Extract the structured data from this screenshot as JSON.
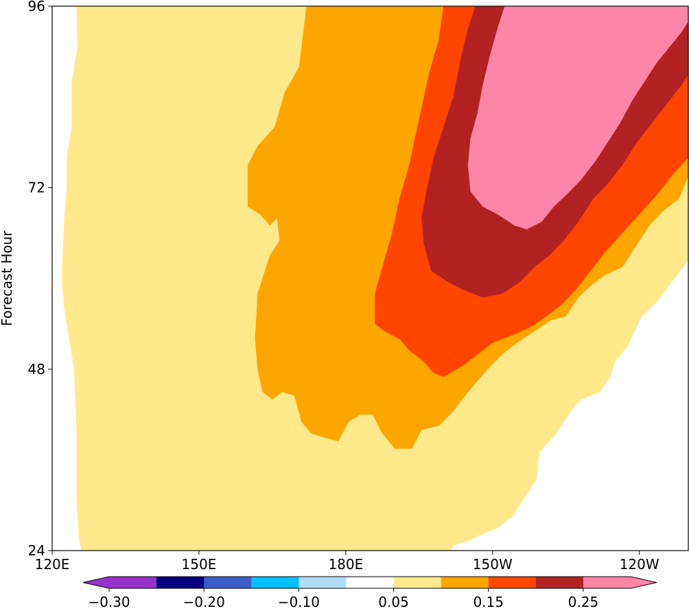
{
  "chart_data": {
    "type": "heatmap",
    "subtype": "filled-contour (Hovmoller)",
    "title": "",
    "xlabel": "",
    "ylabel": "Forecast Hour",
    "x_ticks": [
      "120E",
      "150E",
      "180E",
      "150W",
      "120W"
    ],
    "x_tick_values_lon": [
      120,
      150,
      180,
      210,
      240
    ],
    "x_range_lon": [
      120,
      250
    ],
    "y_ticks": [
      24,
      48,
      72,
      96
    ],
    "ylim": [
      24,
      96
    ],
    "grid": false,
    "contour_levels": [
      -0.3,
      -0.25,
      -0.2,
      -0.15,
      -0.1,
      -0.05,
      0.05,
      0.1,
      0.15,
      0.2,
      0.25,
      0.3
    ],
    "colorbar": {
      "orientation": "horizontal",
      "placement": "bottom",
      "tick_labels": [
        "−0.30",
        "−0.20",
        "−0.10",
        "0.05",
        "0.15",
        "0.25"
      ],
      "colors": [
        "#9932cc",
        "#000080",
        "#3c5ccc",
        "#00bfff",
        "#b0dcf8",
        "#ffffff",
        "#ffe98a",
        "#ffa500",
        "#ff4500",
        "#b22222",
        "#ff85a8"
      ],
      "extend": "both"
    },
    "regions": [
      {
        "level": "0.05–0.10",
        "color": "#ffe98a",
        "outline": [
          [
            125.0,
            96.0
          ],
          [
            125.2,
            90.5
          ],
          [
            124.0,
            86.0
          ],
          [
            124.0,
            80.0
          ],
          [
            123.0,
            76.0
          ],
          [
            123.0,
            72.0
          ],
          [
            122.5,
            68.0
          ],
          [
            122.0,
            60.0
          ],
          [
            122.5,
            56.0
          ],
          [
            123.5,
            52.0
          ],
          [
            124.5,
            48.0
          ],
          [
            125.0,
            40.0
          ],
          [
            125.0,
            31.0
          ],
          [
            125.5,
            25.5
          ],
          [
            126.0,
            24.0
          ],
          [
            201.5,
            24.0
          ],
          [
            202.0,
            24.7
          ],
          [
            205.0,
            25.3
          ],
          [
            209.0,
            26.5
          ],
          [
            211.0,
            27.0
          ],
          [
            214.0,
            28.5
          ],
          [
            216.0,
            30.5
          ],
          [
            218.0,
            32.5
          ],
          [
            219.0,
            33.5
          ],
          [
            219.5,
            37.0
          ],
          [
            223.0,
            39.5
          ],
          [
            225.5,
            42.0
          ],
          [
            228.0,
            44.0
          ],
          [
            232.0,
            45.0
          ],
          [
            234.0,
            47.0
          ],
          [
            235.0,
            49.0
          ],
          [
            237.5,
            51.0
          ],
          [
            239.0,
            53.0
          ],
          [
            240.5,
            55.0
          ],
          [
            243.0,
            56.5
          ],
          [
            246.0,
            59.0
          ],
          [
            249.5,
            62.0
          ],
          [
            250.0,
            62.5
          ],
          [
            250.0,
            96.0
          ]
        ]
      },
      {
        "level": "0.10–0.15",
        "color": "#ffa500",
        "outline": [
          [
            172.0,
            96.0
          ],
          [
            170.5,
            88.0
          ],
          [
            167.5,
            84.5
          ],
          [
            165.5,
            80.0
          ],
          [
            162.0,
            77.5
          ],
          [
            160.0,
            75.0
          ],
          [
            160.0,
            69.5
          ],
          [
            162.5,
            68.5
          ],
          [
            164.5,
            67.0
          ],
          [
            166.0,
            68.0
          ],
          [
            166.5,
            65.0
          ],
          [
            164.5,
            63.0
          ],
          [
            162.0,
            58.0
          ],
          [
            161.5,
            52.0
          ],
          [
            162.0,
            48.0
          ],
          [
            163.0,
            45.0
          ],
          [
            165.0,
            44.0
          ],
          [
            167.0,
            45.0
          ],
          [
            169.5,
            44.5
          ],
          [
            171.0,
            41.0
          ],
          [
            173.0,
            39.5
          ],
          [
            175.5,
            39.0
          ],
          [
            178.5,
            38.5
          ],
          [
            180.5,
            41.0
          ],
          [
            183.0,
            42.0
          ],
          [
            185.5,
            42.0
          ],
          [
            187.5,
            39.5
          ],
          [
            190.0,
            37.5
          ],
          [
            193.5,
            37.5
          ],
          [
            195.5,
            40.0
          ],
          [
            199.0,
            40.5
          ],
          [
            202.0,
            42.5
          ],
          [
            205.0,
            45.0
          ],
          [
            209.0,
            48.0
          ],
          [
            212.0,
            50.0
          ],
          [
            215.0,
            51.5
          ],
          [
            218.5,
            53.0
          ],
          [
            222.0,
            54.5
          ],
          [
            225.0,
            55.0
          ],
          [
            227.5,
            57.5
          ],
          [
            230.0,
            59.0
          ],
          [
            233.0,
            60.5
          ],
          [
            236.5,
            61.5
          ],
          [
            239.0,
            64.0
          ],
          [
            242.0,
            67.0
          ],
          [
            245.0,
            69.0
          ],
          [
            248.0,
            70.5
          ],
          [
            250.0,
            73.5
          ],
          [
            250.0,
            96.0
          ]
        ]
      },
      {
        "level": "0.15–0.20",
        "color": "#ff4500",
        "outline": [
          [
            200.0,
            96.0
          ],
          [
            199.0,
            91.5
          ],
          [
            197.0,
            87.0
          ],
          [
            195.0,
            81.0
          ],
          [
            193.0,
            75.0
          ],
          [
            191.0,
            70.5
          ],
          [
            189.5,
            66.0
          ],
          [
            187.5,
            61.5
          ],
          [
            186.0,
            58.0
          ],
          [
            186.0,
            54.0
          ],
          [
            188.0,
            53.0
          ],
          [
            191.0,
            52.0
          ],
          [
            193.0,
            50.5
          ],
          [
            196.0,
            49.0
          ],
          [
            198.0,
            47.5
          ],
          [
            200.0,
            47.0
          ],
          [
            204.0,
            48.5
          ],
          [
            207.0,
            50.0
          ],
          [
            210.0,
            51.5
          ],
          [
            214.0,
            52.5
          ],
          [
            217.5,
            53.5
          ],
          [
            221.0,
            55.0
          ],
          [
            224.0,
            56.5
          ],
          [
            227.0,
            58.5
          ],
          [
            230.0,
            61.0
          ],
          [
            233.0,
            63.5
          ],
          [
            236.5,
            66.0
          ],
          [
            240.0,
            68.5
          ],
          [
            243.5,
            71.0
          ],
          [
            246.5,
            73.5
          ],
          [
            250.0,
            76.0
          ],
          [
            250.0,
            96.0
          ]
        ]
      },
      {
        "level": "0.20–0.25",
        "color": "#b22222",
        "outline": [
          [
            206.5,
            96.0
          ],
          [
            205.0,
            93.0
          ],
          [
            203.5,
            89.0
          ],
          [
            202.0,
            84.0
          ],
          [
            200.0,
            80.0
          ],
          [
            198.0,
            76.0
          ],
          [
            196.5,
            71.5
          ],
          [
            195.5,
            68.0
          ],
          [
            196.0,
            64.5
          ],
          [
            197.5,
            61.0
          ],
          [
            201.0,
            59.5
          ],
          [
            204.0,
            58.5
          ],
          [
            208.0,
            57.5
          ],
          [
            212.0,
            58.0
          ],
          [
            215.5,
            59.5
          ],
          [
            218.5,
            61.5
          ],
          [
            221.5,
            63.0
          ],
          [
            224.5,
            65.0
          ],
          [
            227.5,
            67.5
          ],
          [
            230.5,
            70.5
          ],
          [
            233.5,
            72.5
          ],
          [
            236.5,
            75.0
          ],
          [
            239.5,
            78.0
          ],
          [
            242.5,
            80.5
          ],
          [
            245.5,
            83.0
          ],
          [
            248.5,
            85.5
          ],
          [
            250.0,
            87.0
          ],
          [
            250.0,
            96.0
          ]
        ]
      },
      {
        "level": ">0.25",
        "color": "#ff85a8",
        "outline": [
          [
            212.5,
            96.0
          ],
          [
            211.0,
            93.0
          ],
          [
            209.5,
            89.5
          ],
          [
            208.0,
            85.5
          ],
          [
            207.0,
            82.0
          ],
          [
            205.5,
            78.5
          ],
          [
            205.0,
            75.0
          ],
          [
            205.5,
            71.5
          ],
          [
            208.0,
            69.5
          ],
          [
            211.0,
            68.5
          ],
          [
            214.5,
            67.0
          ],
          [
            217.0,
            66.5
          ],
          [
            220.0,
            67.5
          ],
          [
            222.5,
            69.5
          ],
          [
            225.0,
            71.0
          ],
          [
            228.0,
            73.0
          ],
          [
            231.0,
            75.5
          ],
          [
            233.5,
            78.0
          ],
          [
            236.0,
            80.5
          ],
          [
            238.5,
            83.5
          ],
          [
            241.0,
            86.0
          ],
          [
            243.5,
            88.5
          ],
          [
            246.0,
            90.5
          ],
          [
            248.5,
            92.5
          ],
          [
            250.0,
            94.0
          ],
          [
            250.0,
            96.0
          ]
        ]
      }
    ]
  }
}
